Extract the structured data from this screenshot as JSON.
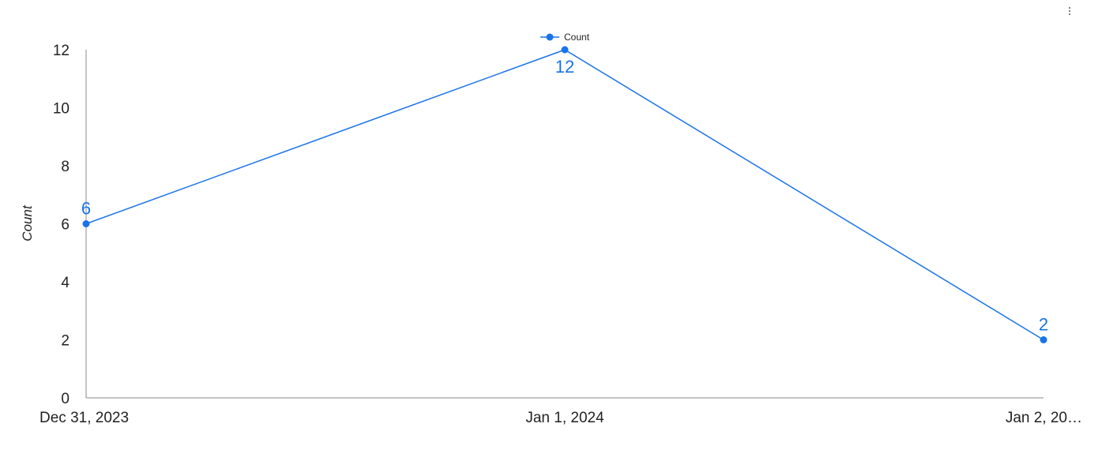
{
  "colors": {
    "series": "#1a73e8",
    "axis": "#888888",
    "text": "#222222"
  },
  "menu": {
    "icon": "more-vert-icon"
  },
  "chart_data": {
    "type": "line",
    "title": "",
    "xlabel": "",
    "ylabel": "Count",
    "categories": [
      "Dec 31, 2023",
      "Jan 1, 2024",
      "Jan 2, 20…"
    ],
    "series": [
      {
        "name": "Count",
        "values": [
          6,
          12,
          2
        ],
        "color": "#1a73e8"
      }
    ],
    "ylim": [
      0,
      12
    ],
    "yticks": [
      0,
      2,
      4,
      6,
      8,
      10,
      12
    ],
    "data_labels": true,
    "grid": false,
    "legend": "top-center"
  }
}
